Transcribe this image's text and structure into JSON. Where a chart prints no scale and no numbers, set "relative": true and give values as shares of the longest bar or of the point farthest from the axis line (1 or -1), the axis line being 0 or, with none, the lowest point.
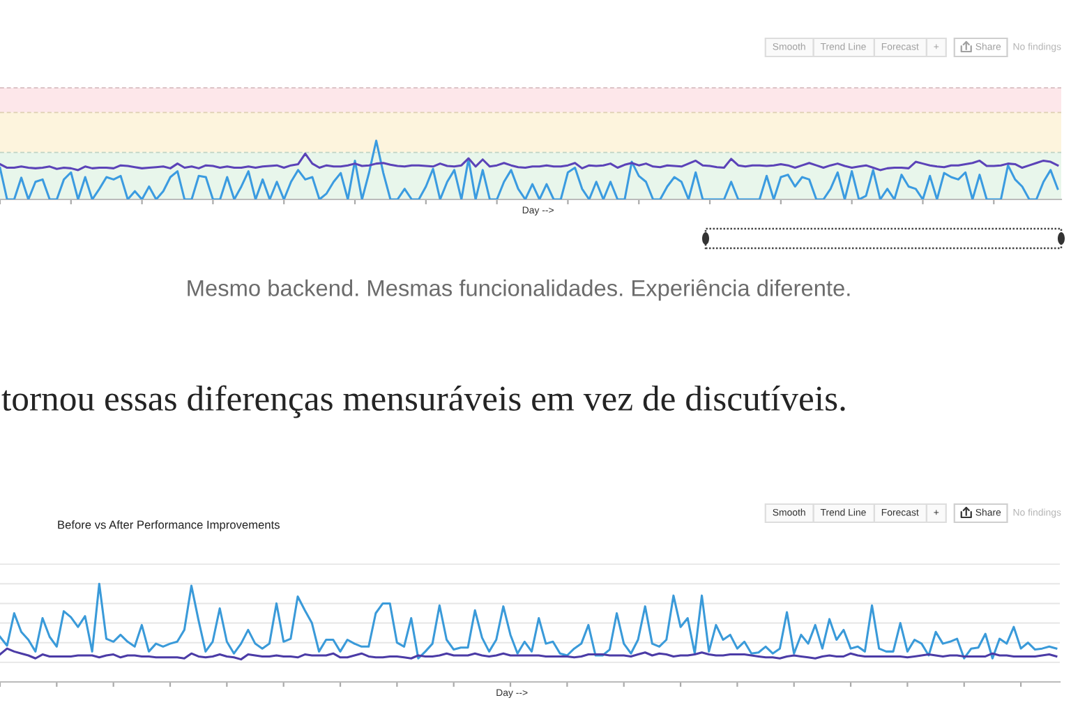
{
  "chart_data": [
    {
      "type": "line",
      "xlabel": "Day -->",
      "relative": true,
      "categories": [
        null,
        null,
        null,
        null,
        null,
        null,
        null,
        null,
        null,
        null,
        null,
        null,
        null,
        null,
        null,
        null,
        null,
        null,
        null,
        null,
        null,
        null,
        null,
        null,
        null,
        null,
        null,
        null,
        null,
        null,
        null,
        null,
        null,
        null,
        null,
        null,
        null,
        null,
        null,
        null,
        null,
        null,
        null,
        null,
        null,
        null,
        null,
        null,
        null,
        null,
        null,
        null,
        null,
        null,
        null,
        null,
        null,
        null,
        null,
        null,
        null,
        null,
        null,
        null,
        null,
        null,
        null,
        null,
        null,
        null,
        null,
        null,
        null,
        null,
        null,
        null,
        null,
        null,
        null,
        null,
        null,
        null,
        null,
        null,
        null,
        null,
        null,
        null,
        null,
        null,
        null,
        null,
        null,
        null,
        null,
        null,
        null,
        null,
        null,
        null,
        null,
        null,
        null,
        null,
        null,
        null,
        null,
        null,
        null,
        null,
        null,
        null,
        null,
        null,
        null,
        null,
        null,
        null,
        null,
        null,
        null,
        null,
        null,
        null,
        null,
        null,
        null,
        null,
        null,
        null,
        null,
        null,
        null,
        null,
        null,
        null,
        null,
        null,
        null,
        null,
        null,
        null,
        null,
        null,
        null,
        null,
        null,
        null,
        null,
        null
      ],
      "series": [
        {
          "color": "#3b9be0",
          "values": [
            0.54,
            0,
            0,
            0.37,
            0,
            0.3,
            0.34,
            0,
            0,
            0.34,
            0.46,
            0,
            0.38,
            0,
            0.18,
            0.38,
            0.34,
            0.4,
            0,
            0.14,
            0,
            0.22,
            0,
            0.14,
            0.38,
            0.48,
            0,
            0,
            0.4,
            0.38,
            0,
            0,
            0.38,
            0,
            0.22,
            0.48,
            0,
            0.34,
            0,
            0.3,
            0,
            0.3,
            0.5,
            0.34,
            0.38,
            0,
            0.1,
            0.3,
            0.45,
            0,
            0.66,
            0,
            0.46,
            1,
            0.45,
            0,
            0,
            0.18,
            0,
            0,
            0.22,
            0.52,
            0,
            0.3,
            0.5,
            0,
            0.69,
            0,
            0.5,
            0,
            0,
            0.3,
            0.5,
            0.18,
            0,
            0.26,
            0,
            0.26,
            0,
            0,
            0.46,
            0.54,
            0.18,
            0,
            0.3,
            0,
            0.3,
            0,
            0,
            0.64,
            0.4,
            0.3,
            0,
            0,
            0.22,
            0.38,
            0.3,
            0,
            0.46,
            0,
            0,
            0,
            0,
            0.3,
            0,
            0,
            0,
            0,
            0.4,
            0,
            0.38,
            0.42,
            0.22,
            0.38,
            0.34,
            0,
            0,
            0.18,
            0.46,
            0,
            0.48,
            0,
            0.06,
            0.5,
            0,
            0.18,
            0,
            0.42,
            0.22,
            0.18,
            0,
            0.4,
            0,
            0.45,
            0.38,
            0.34,
            0.46,
            0,
            0.42,
            0,
            0,
            0,
            0.58,
            0.34,
            0.22,
            0,
            0,
            0.3,
            0.5,
            0.18
          ]
        },
        {
          "color": "#5b43b8",
          "values": [
            0.6,
            0.54,
            0.54,
            0.56,
            0.54,
            0.53,
            0.54,
            0.56,
            0.52,
            0.54,
            0.53,
            0.5,
            0.56,
            0.53,
            0.54,
            0.54,
            0.53,
            0.58,
            0.57,
            0.55,
            0.53,
            0.54,
            0.55,
            0.56,
            0.53,
            0.61,
            0.54,
            0.56,
            0.53,
            0.58,
            0.57,
            0.54,
            0.56,
            0.54,
            0.54,
            0.56,
            0.54,
            0.56,
            0.57,
            0.58,
            0.54,
            0.58,
            0.6,
            0.78,
            0.61,
            0.54,
            0.58,
            0.56,
            0.56,
            0.58,
            0.61,
            0.57,
            0.58,
            0.61,
            0.62,
            0.59,
            0.57,
            0.56,
            0.58,
            0.58,
            0.57,
            0.56,
            0.61,
            0.57,
            0.56,
            0.58,
            0.7,
            0.56,
            0.68,
            0.56,
            0.58,
            0.62,
            0.58,
            0.55,
            0.54,
            0.56,
            0.56,
            0.58,
            0.56,
            0.56,
            0.58,
            0.62,
            0.53,
            0.58,
            0.57,
            0.58,
            0.61,
            0.54,
            0.59,
            0.62,
            0.58,
            0.61,
            0.56,
            0.55,
            0.58,
            0.57,
            0.56,
            0.61,
            0.66,
            0.58,
            0.57,
            0.55,
            0.54,
            0.69,
            0.58,
            0.56,
            0.58,
            0.58,
            0.57,
            0.58,
            0.6,
            0.58,
            0.54,
            0.58,
            0.62,
            0.58,
            0.54,
            0.58,
            0.61,
            0.57,
            0.54,
            0.56,
            0.58,
            0.54,
            0.5,
            0.53,
            0.54,
            0.54,
            0.53,
            0.64,
            0.61,
            0.58,
            0.56,
            0.55,
            0.58,
            0.58,
            0.6,
            0.62,
            0.66,
            0.57,
            0.57,
            0.58,
            0.61,
            0.6,
            0.54,
            0.58,
            0.62,
            0.66,
            0.64,
            0.58
          ]
        }
      ],
      "bands": [
        {
          "axis": "y",
          "from": 0,
          "to": 0.8,
          "color": "#e8f6eb"
        },
        {
          "axis": "y",
          "from": 0.8,
          "to": 1.48,
          "color": "#fdf4dd"
        },
        {
          "axis": "y",
          "from": 1.48,
          "to": 1.9,
          "color": "#fde7ea"
        }
      ],
      "ref_lines": [
        {
          "axis": "y",
          "value": 0.8,
          "line_style": "dashed",
          "color": "#bfd3c4"
        },
        {
          "axis": "y",
          "value": 1.48,
          "line_style": "dashed",
          "color": "#ddd0b2"
        },
        {
          "axis": "y",
          "value": 1.9,
          "line_style": "dashed",
          "color": "#dcc3c7"
        }
      ],
      "annotations": [
        "Smooth",
        "Trend Line",
        "Forecast",
        "+",
        "Share",
        "No findings"
      ]
    },
    {
      "type": "other",
      "annotations": [
        "Mesmo backend. Mesmas funcionalidades. Experiência diferente.",
        "tornou essas diferenças mensuráveis em vez de discutíveis."
      ]
    },
    {
      "type": "line",
      "title": "Before vs After Performance Improvements",
      "xlabel": "Day -->",
      "relative": true,
      "grid": "y",
      "categories": [
        null,
        null,
        null,
        null,
        null,
        null,
        null,
        null,
        null,
        null,
        null,
        null,
        null,
        null,
        null,
        null,
        null,
        null,
        null,
        null,
        null,
        null,
        null,
        null,
        null,
        null,
        null,
        null,
        null,
        null,
        null,
        null,
        null,
        null,
        null,
        null,
        null,
        null,
        null,
        null,
        null,
        null,
        null,
        null,
        null,
        null,
        null,
        null,
        null,
        null,
        null,
        null,
        null,
        null,
        null,
        null,
        null,
        null,
        null,
        null,
        null,
        null,
        null,
        null,
        null,
        null,
        null,
        null,
        null,
        null,
        null,
        null,
        null,
        null,
        null,
        null,
        null,
        null,
        null,
        null,
        null,
        null,
        null,
        null,
        null,
        null,
        null,
        null,
        null,
        null,
        null,
        null,
        null,
        null,
        null,
        null,
        null,
        null,
        null,
        null,
        null,
        null,
        null,
        null,
        null,
        null,
        null,
        null,
        null,
        null,
        null,
        null,
        null,
        null,
        null,
        null,
        null,
        null,
        null,
        null,
        null,
        null,
        null,
        null,
        null,
        null,
        null,
        null,
        null,
        null,
        null,
        null,
        null,
        null,
        null,
        null,
        null,
        null,
        null,
        null,
        null,
        null,
        null,
        null,
        null,
        null,
        null,
        null,
        null,
        null
      ],
      "series": [
        {
          "color": "#3a9ad9",
          "values": [
            0.46,
            0.37,
            0.7,
            0.51,
            0.43,
            0.31,
            0.65,
            0.46,
            0.36,
            0.72,
            0.66,
            0.56,
            0.67,
            0.31,
            1,
            0.44,
            0.41,
            0.48,
            0.41,
            0.36,
            0.58,
            0.31,
            0.39,
            0.36,
            0.39,
            0.41,
            0.53,
            0.98,
            0.63,
            0.31,
            0.41,
            0.75,
            0.41,
            0.29,
            0.39,
            0.53,
            0.39,
            0.34,
            0.39,
            0.8,
            0.41,
            0.44,
            0.87,
            0.73,
            0.6,
            0.31,
            0.43,
            0.43,
            0.31,
            0.43,
            0.39,
            0.36,
            0.36,
            0.7,
            0.8,
            0.8,
            0.4,
            0.36,
            0.65,
            0.24,
            0.31,
            0.39,
            0.78,
            0.43,
            0.33,
            0.35,
            0.35,
            0.73,
            0.45,
            0.31,
            0.43,
            0.77,
            0.48,
            0.29,
            0.41,
            0.31,
            0.65,
            0.39,
            0.41,
            0.29,
            0.27,
            0.34,
            0.39,
            0.58,
            0.27,
            0.27,
            0.33,
            0.7,
            0.39,
            0.29,
            0.43,
            0.77,
            0.39,
            0.36,
            0.43,
            0.88,
            0.56,
            0.65,
            0.29,
            0.88,
            0.31,
            0.58,
            0.43,
            0.48,
            0.34,
            0.41,
            0.29,
            0.3,
            0.36,
            0.29,
            0.34,
            0.71,
            0.29,
            0.48,
            0.39,
            0.58,
            0.34,
            0.64,
            0.43,
            0.53,
            0.34,
            0.36,
            0.31,
            0.78,
            0.34,
            0.31,
            0.31,
            0.6,
            0.31,
            0.43,
            0.39,
            0.27,
            0.51,
            0.39,
            0.41,
            0.44,
            0.24,
            0.34,
            0.35,
            0.49,
            0.24,
            0.44,
            0.39,
            0.56,
            0.34,
            0.4,
            0.33,
            0.34,
            0.36,
            0.34
          ]
        },
        {
          "color": "#4b3ba6",
          "values": [
            0.28,
            0.34,
            0.31,
            0.29,
            0.27,
            0.24,
            0.28,
            0.26,
            0.26,
            0.26,
            0.26,
            0.27,
            0.27,
            0.27,
            0.25,
            0.27,
            0.28,
            0.25,
            0.27,
            0.27,
            0.26,
            0.26,
            0.25,
            0.25,
            0.25,
            0.25,
            0.24,
            0.29,
            0.26,
            0.25,
            0.26,
            0.28,
            0.26,
            0.25,
            0.23,
            0.28,
            0.27,
            0.26,
            0.26,
            0.27,
            0.26,
            0.26,
            0.25,
            0.28,
            0.27,
            0.27,
            0.27,
            0.29,
            0.25,
            0.25,
            0.27,
            0.29,
            0.26,
            0.25,
            0.25,
            0.26,
            0.26,
            0.25,
            0.24,
            0.27,
            0.26,
            0.26,
            0.27,
            0.29,
            0.27,
            0.27,
            0.27,
            0.29,
            0.27,
            0.26,
            0.27,
            0.29,
            0.27,
            0.27,
            0.27,
            0.27,
            0.27,
            0.26,
            0.26,
            0.26,
            0.26,
            0.25,
            0.26,
            0.28,
            0.28,
            0.28,
            0.27,
            0.27,
            0.27,
            0.26,
            0.28,
            0.3,
            0.27,
            0.29,
            0.28,
            0.26,
            0.27,
            0.27,
            0.28,
            0.3,
            0.28,
            0.27,
            0.27,
            0.28,
            0.28,
            0.28,
            0.27,
            0.26,
            0.25,
            0.25,
            0.24,
            0.26,
            0.27,
            0.26,
            0.25,
            0.24,
            0.26,
            0.27,
            0.26,
            0.26,
            0.29,
            0.27,
            0.26,
            0.26,
            0.26,
            0.26,
            0.26,
            0.26,
            0.25,
            0.26,
            0.27,
            0.28,
            0.27,
            0.26,
            0.27,
            0.27,
            0.26,
            0.26,
            0.26,
            0.26,
            0.29,
            0.27,
            0.27,
            0.26,
            0.26,
            0.26,
            0.26,
            0.27,
            0.28,
            0.26
          ]
        }
      ],
      "annotations": [
        "Smooth",
        "Trend Line",
        "Forecast",
        "+",
        "Share",
        "No findings"
      ]
    }
  ]
}
